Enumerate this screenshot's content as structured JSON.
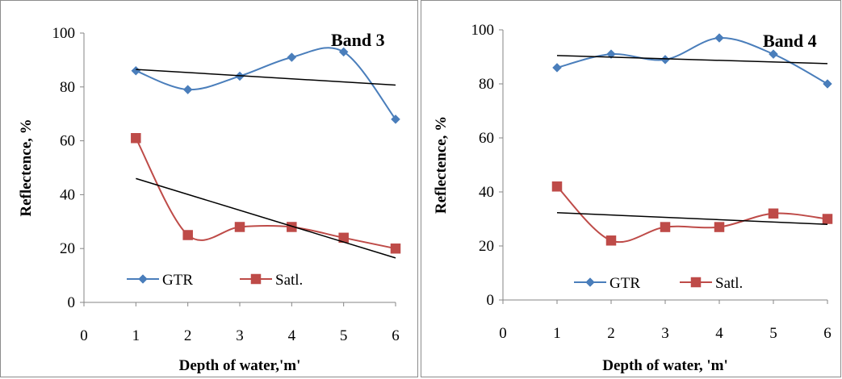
{
  "chart_data": [
    {
      "type": "line",
      "title": "Band 3",
      "xlabel": "Depth of water,'m'",
      "ylabel": "Reflectence, %",
      "xlim": [
        0,
        6
      ],
      "ylim": [
        0,
        100
      ],
      "x_ticks": [
        "0",
        "1",
        "2",
        "3",
        "4",
        "5",
        "6"
      ],
      "y_ticks": [
        "0",
        "20",
        "40",
        "60",
        "80",
        "100"
      ],
      "x": [
        1,
        2,
        3,
        4,
        5,
        6
      ],
      "grid": false,
      "legend": "bottom",
      "series": [
        {
          "name": "GTR",
          "values": [
            86,
            79,
            84,
            91,
            93,
            68
          ],
          "color": "#4a7ebb",
          "marker": "diamond",
          "trendline": [
            86.5,
            80.7
          ]
        },
        {
          "name": "Satl.",
          "values": [
            61,
            25,
            28,
            28,
            24,
            20
          ],
          "color": "#be4b48",
          "marker": "square",
          "trendline": [
            46,
            16.5
          ]
        }
      ]
    },
    {
      "type": "line",
      "title": "Band 4",
      "xlabel": "Depth of water, 'm'",
      "ylabel": "Reflectence, %",
      "xlim": [
        0,
        6
      ],
      "ylim": [
        0,
        100
      ],
      "x_ticks": [
        "0",
        "1",
        "2",
        "3",
        "4",
        "5",
        "6"
      ],
      "y_ticks": [
        "0",
        "20",
        "40",
        "60",
        "80",
        "100"
      ],
      "x": [
        1,
        2,
        3,
        4,
        5,
        6
      ],
      "grid": false,
      "legend": "bottom",
      "series": [
        {
          "name": "GTR",
          "values": [
            86,
            91,
            89,
            97,
            91,
            80
          ],
          "color": "#4a7ebb",
          "marker": "diamond",
          "trendline": [
            90.5,
            87.5
          ]
        },
        {
          "name": "Satl.",
          "values": [
            42,
            22,
            27,
            27,
            32,
            30
          ],
          "color": "#be4b48",
          "marker": "square",
          "trendline": [
            32.3,
            28
          ]
        }
      ]
    }
  ]
}
